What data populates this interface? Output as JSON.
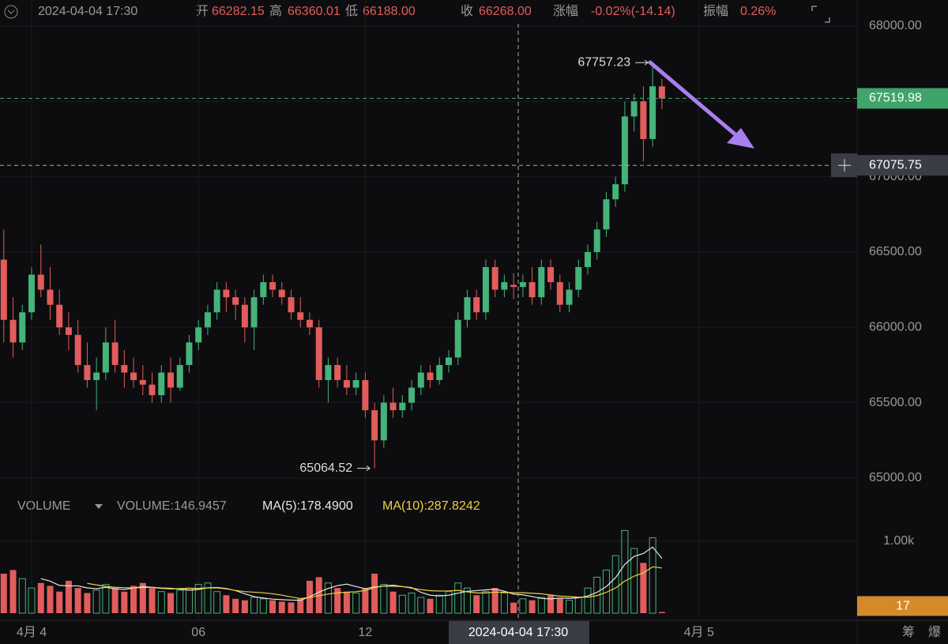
{
  "header": {
    "datetime": "2024-04-04 17:30",
    "open_label": "开",
    "open": "66282.15",
    "high_label": "高",
    "high": "66360.01",
    "low_label": "低",
    "low": "66188.00",
    "close_label": "收",
    "close": "66268.00",
    "change_label": "涨幅",
    "change": "-0.02%(-14.14)",
    "amplitude_label": "振幅",
    "amplitude": "0.26%"
  },
  "footer_tools": [
    "筹",
    "爆"
  ],
  "chart_data": [
    {
      "type": "candlestick",
      "up_color": "#45b37a",
      "down_color": "#e25c5c",
      "grid": true,
      "xlim": [
        -68.2,
        1781.3
      ],
      "xticks": [
        {
          "value": 0,
          "label": "4月 4"
        },
        {
          "value": 360,
          "label": "06"
        },
        {
          "value": 720,
          "label": "12"
        },
        {
          "value": 1440,
          "label": "4月 5"
        }
      ],
      "ylim": [
        64921,
        68173
      ],
      "yticks": [
        {
          "value": 65000,
          "label": "65000.00"
        },
        {
          "value": 65500,
          "label": "65500.00"
        },
        {
          "value": 66000,
          "label": "66000.00"
        },
        {
          "value": 66500,
          "label": "66500.00"
        },
        {
          "value": 67000,
          "label": "67000.00"
        },
        {
          "value": 67500,
          "label": "67500.00"
        },
        {
          "value": 68000,
          "label": "68000.00"
        }
      ],
      "x": [
        -60,
        -40,
        -20,
        0,
        20,
        40,
        60,
        80,
        100,
        120,
        140,
        160,
        180,
        200,
        220,
        240,
        260,
        280,
        300,
        320,
        340,
        360,
        380,
        400,
        420,
        440,
        460,
        480,
        500,
        520,
        540,
        560,
        580,
        600,
        620,
        640,
        660,
        680,
        700,
        720,
        740,
        760,
        780,
        800,
        820,
        840,
        860,
        880,
        900,
        920,
        940,
        960,
        980,
        1000,
        1020,
        1040,
        1060,
        1080,
        1100,
        1120,
        1140,
        1160,
        1180,
        1200,
        1220,
        1240,
        1260,
        1280,
        1300,
        1320,
        1340,
        1360
      ],
      "ohlc": [
        [
          66450,
          66650,
          65900,
          66050
        ],
        [
          66050,
          66200,
          65800,
          65900
        ],
        [
          65900,
          66150,
          65850,
          66100
        ],
        [
          66100,
          66400,
          66050,
          66350
        ],
        [
          66350,
          66550,
          66200,
          66250
        ],
        [
          66250,
          66400,
          66050,
          66150
        ],
        [
          66150,
          66250,
          65950,
          66000
        ],
        [
          66000,
          66100,
          65850,
          65950
        ],
        [
          65950,
          66050,
          65700,
          65750
        ],
        [
          65750,
          65900,
          65600,
          65650
        ],
        [
          65650,
          65800,
          65450,
          65700
        ],
        [
          65700,
          66000,
          65650,
          65900
        ],
        [
          65900,
          66050,
          65700,
          65750
        ],
        [
          65750,
          65850,
          65600,
          65700
        ],
        [
          65700,
          65800,
          65600,
          65650
        ],
        [
          65650,
          65750,
          65550,
          65620
        ],
        [
          65620,
          65700,
          65500,
          65550
        ],
        [
          65550,
          65750,
          65500,
          65700
        ],
        [
          65700,
          65800,
          65500,
          65600
        ],
        [
          65600,
          65800,
          65580,
          65750
        ],
        [
          65750,
          65950,
          65700,
          65900
        ],
        [
          65900,
          66050,
          65850,
          66000
        ],
        [
          66000,
          66150,
          65950,
          66100
        ],
        [
          66100,
          66300,
          66050,
          66250
        ],
        [
          66250,
          66300,
          66100,
          66200
        ],
        [
          66200,
          66250,
          66050,
          66150
        ],
        [
          66150,
          66200,
          65900,
          66000
        ],
        [
          66000,
          66250,
          65850,
          66200
        ],
        [
          66200,
          66350,
          66150,
          66300
        ],
        [
          66300,
          66350,
          66200,
          66250
        ],
        [
          66250,
          66300,
          66150,
          66200
        ],
        [
          66200,
          66250,
          66050,
          66100
        ],
        [
          66100,
          66200,
          66000,
          66050
        ],
        [
          66050,
          66100,
          65950,
          66000
        ],
        [
          66000,
          66050,
          65600,
          65650
        ],
        [
          65650,
          65800,
          65500,
          65750
        ],
        [
          65750,
          65800,
          65600,
          65650
        ],
        [
          65650,
          65750,
          65550,
          65600
        ],
        [
          65600,
          65700,
          65550,
          65650
        ],
        [
          65650,
          65700,
          65400,
          65450
        ],
        [
          65450,
          65500,
          65064.52,
          65250
        ],
        [
          65250,
          65550,
          65200,
          65500
        ],
        [
          65500,
          65600,
          65400,
          65450
        ],
        [
          65450,
          65550,
          65400,
          65500
        ],
        [
          65500,
          65650,
          65450,
          65600
        ],
        [
          65600,
          65750,
          65550,
          65700
        ],
        [
          65700,
          65750,
          65600,
          65650
        ],
        [
          65650,
          65800,
          65620,
          65750
        ],
        [
          65750,
          65850,
          65700,
          65800
        ],
        [
          65800,
          66100,
          65750,
          66050
        ],
        [
          66050,
          66250,
          66000,
          66200
        ],
        [
          66200,
          66250,
          66050,
          66100
        ],
        [
          66100,
          66450,
          66050,
          66400
        ],
        [
          66400,
          66450,
          66200,
          66250
        ],
        [
          66250,
          66350,
          66200,
          66300
        ],
        [
          66282.15,
          66360.01,
          66188,
          66268
        ],
        [
          66268,
          66350,
          66200,
          66300
        ],
        [
          66300,
          66400,
          66150,
          66200
        ],
        [
          66200,
          66450,
          66150,
          66400
        ],
        [
          66400,
          66450,
          66250,
          66300
        ],
        [
          66300,
          66350,
          66100,
          66150
        ],
        [
          66150,
          66300,
          66100,
          66250
        ],
        [
          66250,
          66450,
          66200,
          66400
        ],
        [
          66400,
          66550,
          66350,
          66500
        ],
        [
          66500,
          66700,
          66450,
          66650
        ],
        [
          66650,
          66900,
          66600,
          66850
        ],
        [
          66850,
          67000,
          66800,
          66950
        ],
        [
          66950,
          67500,
          66900,
          67400
        ],
        [
          67400,
          67550,
          67300,
          67500
        ],
        [
          67500,
          67600,
          67100,
          67250
        ],
        [
          67250,
          67757.23,
          67200,
          67600
        ],
        [
          67600,
          67650,
          67450,
          67519.98
        ]
      ],
      "high_label": {
        "value": 67757.23,
        "label": "67757.23"
      },
      "low_label": {
        "value": 65064.52,
        "label": "65064.52"
      },
      "last_price": {
        "value": 67519.98,
        "label": "67519.98",
        "color": "#3fa46a"
      },
      "crosshair": {
        "x": {
          "value": 1050,
          "label": "2024-04-04 17:30"
        },
        "y": {
          "value": 67075.75,
          "label": "67075.75"
        }
      }
    },
    {
      "type": "bar",
      "legend": {
        "title": "VOLUME",
        "current": "VOLUME:146.9457",
        "ma5": "MA(5):178.4900",
        "ma10": "MA(10):287.8242"
      },
      "ylim": [
        0,
        1330
      ],
      "yticks": [
        {
          "value": 1000,
          "label": "1.00k"
        }
      ],
      "values": [
        550,
        600,
        480,
        350,
        420,
        380,
        300,
        450,
        350,
        280,
        320,
        400,
        350,
        300,
        380,
        420,
        350,
        300,
        280,
        320,
        350,
        400,
        420,
        300,
        250,
        200,
        180,
        220,
        200,
        180,
        160,
        150,
        200,
        450,
        500,
        420,
        350,
        300,
        280,
        350,
        550,
        400,
        300,
        250,
        280,
        220,
        200,
        250,
        300,
        420,
        350,
        250,
        300,
        350,
        280,
        146.9457,
        200,
        180,
        220,
        250,
        200,
        180,
        220,
        350,
        500,
        600,
        800,
        1150,
        900,
        700,
        1050,
        17
      ],
      "last": {
        "value": 17,
        "label": "17",
        "color": "#d58a2a"
      }
    }
  ]
}
